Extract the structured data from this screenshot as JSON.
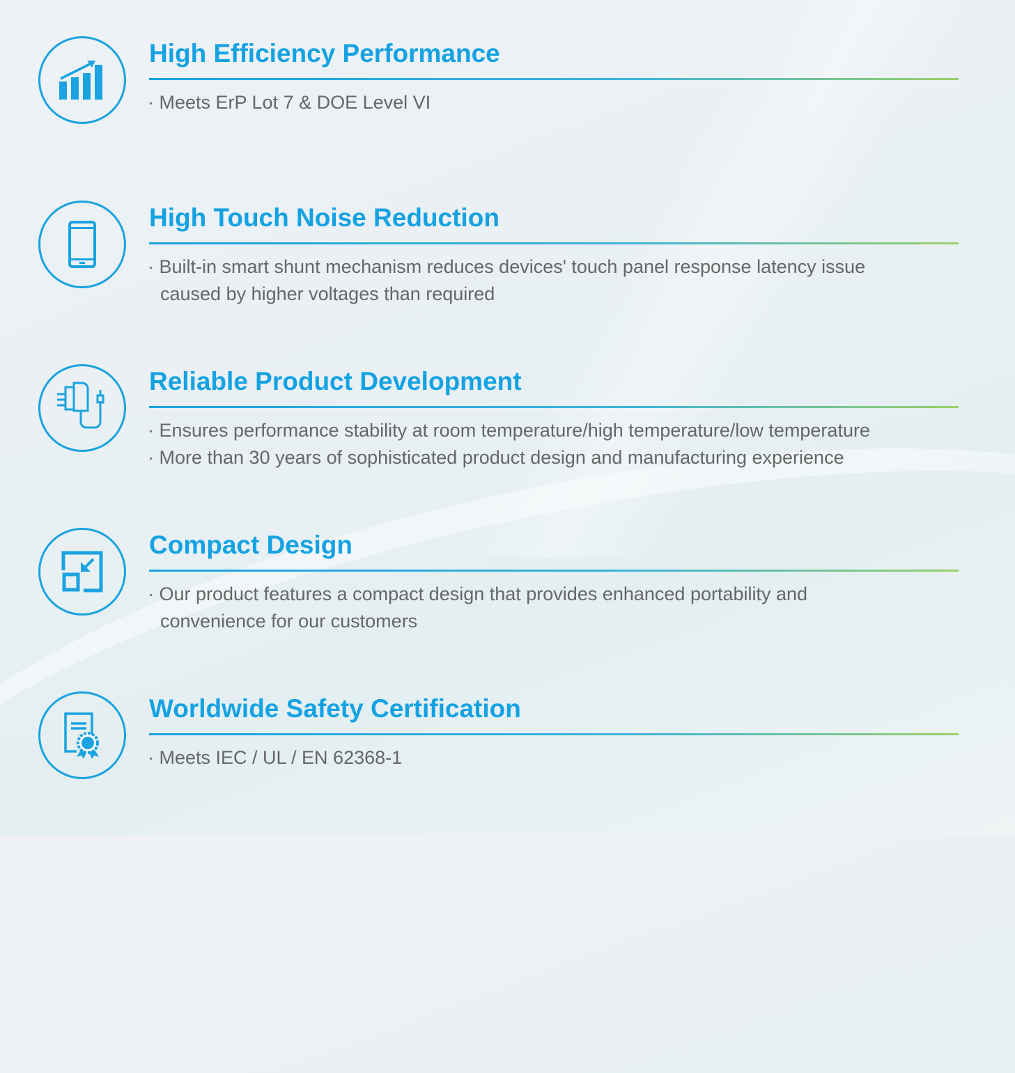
{
  "features": [
    {
      "title": "High Efficiency Performance",
      "icon": "bar-chart-growth-icon",
      "lines": [
        "· Meets ErP Lot 7 & DOE Level VI"
      ]
    },
    {
      "title": "High Touch Noise Reduction",
      "icon": "smartphone-icon",
      "lines": [
        "· Built-in smart shunt mechanism reduces devices' touch panel response latency issue",
        "caused by higher voltages than required"
      ]
    },
    {
      "title": "Reliable Product Development",
      "icon": "power-adapter-icon",
      "lines": [
        "· Ensures performance stability at room temperature/high temperature/low temperature",
        "· More than 30 years of sophisticated product  design and manufacturing experience"
      ]
    },
    {
      "title": "Compact Design",
      "icon": "compact-resize-icon",
      "lines": [
        "· Our product features a compact design that provides enhanced portability and",
        "convenience for our customers"
      ]
    },
    {
      "title": "Worldwide Safety Certification",
      "icon": "certificate-icon",
      "lines": [
        "· Meets IEC / UL / EN 62368-1"
      ]
    }
  ],
  "colors": {
    "accent": "#15a2e2",
    "text": "#666666",
    "rule_end": "#9bd06a"
  }
}
